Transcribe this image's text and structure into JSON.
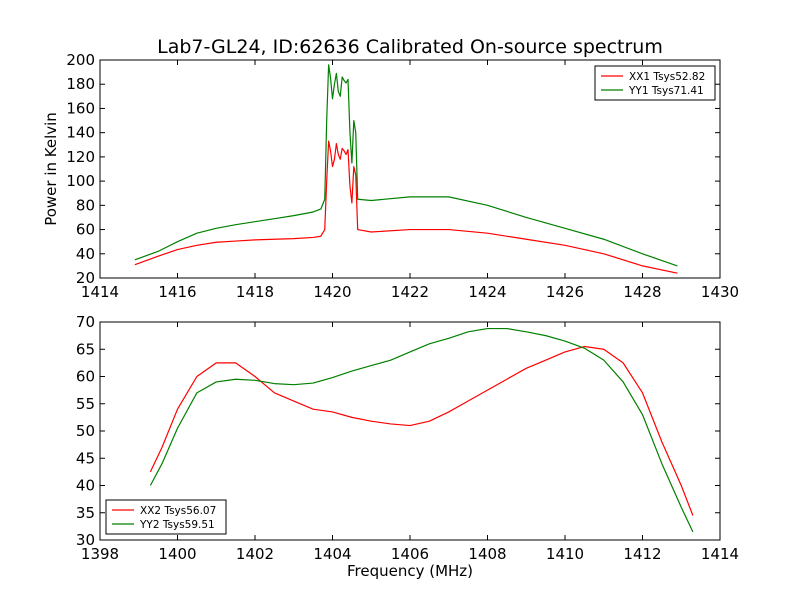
{
  "chart_data": [
    {
      "type": "line",
      "title": "Lab7-GL24, ID:62636 Calibrated On-source spectrum",
      "xlabel": "",
      "ylabel": "Power in Kelvin",
      "xlim": [
        1414,
        1430
      ],
      "ylim": [
        20,
        200
      ],
      "xticks": [
        "1414",
        "1416",
        "1418",
        "1420",
        "1422",
        "1424",
        "1426",
        "1428",
        "1430"
      ],
      "yticks": [
        "20",
        "40",
        "60",
        "80",
        "100",
        "120",
        "140",
        "160",
        "180",
        "200"
      ],
      "legend_position": "top-right",
      "grid": false,
      "series": [
        {
          "name": "XX1 Tsys52.82",
          "color": "#ff0000",
          "points": [
            [
              1414.9,
              31
            ],
            [
              1415.5,
              38
            ],
            [
              1416,
              43.5
            ],
            [
              1416.5,
              47
            ],
            [
              1417,
              49.5
            ],
            [
              1417.5,
              50.5
            ],
            [
              1418,
              51.5
            ],
            [
              1418.5,
              52
            ],
            [
              1419,
              52.5
            ],
            [
              1419.5,
              53.5
            ],
            [
              1419.7,
              54.5
            ],
            [
              1419.8,
              60
            ],
            [
              1419.85,
              100
            ],
            [
              1419.9,
              133
            ],
            [
              1419.95,
              125
            ],
            [
              1420.0,
              112
            ],
            [
              1420.05,
              118
            ],
            [
              1420.1,
              131
            ],
            [
              1420.15,
              122
            ],
            [
              1420.2,
              118
            ],
            [
              1420.25,
              127
            ],
            [
              1420.3,
              125
            ],
            [
              1420.35,
              122
            ],
            [
              1420.4,
              126
            ],
            [
              1420.45,
              96
            ],
            [
              1420.5,
              82
            ],
            [
              1420.55,
              112
            ],
            [
              1420.6,
              105
            ],
            [
              1420.65,
              60
            ],
            [
              1421,
              58
            ],
            [
              1422,
              60
            ],
            [
              1423,
              60
            ],
            [
              1424,
              57
            ],
            [
              1425,
              52
            ],
            [
              1426,
              47
            ],
            [
              1427,
              40
            ],
            [
              1428,
              30
            ],
            [
              1428.9,
              24
            ]
          ]
        },
        {
          "name": "YY1 Tsys71.41",
          "color": "#008000",
          "points": [
            [
              1414.9,
              35
            ],
            [
              1415.5,
              42
            ],
            [
              1416,
              50
            ],
            [
              1416.5,
              57
            ],
            [
              1417,
              61
            ],
            [
              1417.5,
              64
            ],
            [
              1418,
              66.5
            ],
            [
              1418.5,
              69
            ],
            [
              1419,
              71.5
            ],
            [
              1419.5,
              74.5
            ],
            [
              1419.7,
              77
            ],
            [
              1419.8,
              85
            ],
            [
              1419.85,
              150
            ],
            [
              1419.9,
              196
            ],
            [
              1419.95,
              185
            ],
            [
              1420.0,
              168
            ],
            [
              1420.05,
              180
            ],
            [
              1420.1,
              189
            ],
            [
              1420.15,
              174
            ],
            [
              1420.2,
              170
            ],
            [
              1420.25,
              186
            ],
            [
              1420.3,
              183
            ],
            [
              1420.35,
              181
            ],
            [
              1420.4,
              184
            ],
            [
              1420.45,
              140
            ],
            [
              1420.5,
              115
            ],
            [
              1420.55,
              150
            ],
            [
              1420.6,
              140
            ],
            [
              1420.65,
              85
            ],
            [
              1421,
              84
            ],
            [
              1422,
              87
            ],
            [
              1423,
              87
            ],
            [
              1424,
              80
            ],
            [
              1425,
              70
            ],
            [
              1426,
              61
            ],
            [
              1427,
              52
            ],
            [
              1428,
              40
            ],
            [
              1428.9,
              30
            ]
          ]
        }
      ]
    },
    {
      "type": "line",
      "title": "",
      "xlabel": "Frequency (MHz)",
      "ylabel": "",
      "xlim": [
        1398,
        1414
      ],
      "ylim": [
        30,
        70
      ],
      "xticks": [
        "1398",
        "1400",
        "1402",
        "1404",
        "1406",
        "1408",
        "1410",
        "1412",
        "1414"
      ],
      "yticks": [
        "30",
        "35",
        "40",
        "45",
        "50",
        "55",
        "60",
        "65",
        "70"
      ],
      "legend_position": "bottom-left",
      "grid": false,
      "series": [
        {
          "name": "XX2 Tsys56.07",
          "color": "#ff0000",
          "points": [
            [
              1399.3,
              42.5
            ],
            [
              1399.6,
              47
            ],
            [
              1400,
              54
            ],
            [
              1400.5,
              60
            ],
            [
              1401,
              62.5
            ],
            [
              1401.5,
              62.5
            ],
            [
              1402,
              60
            ],
            [
              1402.5,
              57
            ],
            [
              1403,
              55.5
            ],
            [
              1403.5,
              54
            ],
            [
              1404,
              53.5
            ],
            [
              1404.5,
              52.5
            ],
            [
              1405,
              51.8
            ],
            [
              1405.5,
              51.3
            ],
            [
              1406,
              51
            ],
            [
              1406.5,
              51.8
            ],
            [
              1407,
              53.5
            ],
            [
              1407.5,
              55.5
            ],
            [
              1408,
              57.5
            ],
            [
              1408.5,
              59.5
            ],
            [
              1409,
              61.5
            ],
            [
              1409.5,
              63
            ],
            [
              1410,
              64.5
            ],
            [
              1410.5,
              65.5
            ],
            [
              1411,
              65
            ],
            [
              1411.5,
              62.5
            ],
            [
              1412,
              57
            ],
            [
              1412.5,
              48
            ],
            [
              1413,
              40
            ],
            [
              1413.3,
              34.5
            ]
          ]
        },
        {
          "name": "YY2 Tsys59.51",
          "color": "#008000",
          "points": [
            [
              1399.3,
              40
            ],
            [
              1399.6,
              44
            ],
            [
              1400,
              50.5
            ],
            [
              1400.5,
              57
            ],
            [
              1401,
              59
            ],
            [
              1401.5,
              59.5
            ],
            [
              1402,
              59.3
            ],
            [
              1402.5,
              58.7
            ],
            [
              1403,
              58.5
            ],
            [
              1403.5,
              58.8
            ],
            [
              1404,
              59.8
            ],
            [
              1404.5,
              61
            ],
            [
              1405,
              62
            ],
            [
              1405.5,
              63
            ],
            [
              1406,
              64.5
            ],
            [
              1406.5,
              66
            ],
            [
              1407,
              67
            ],
            [
              1407.5,
              68.2
            ],
            [
              1408,
              68.8
            ],
            [
              1408.5,
              68.8
            ],
            [
              1409,
              68.2
            ],
            [
              1409.5,
              67.5
            ],
            [
              1410,
              66.5
            ],
            [
              1410.5,
              65.2
            ],
            [
              1411,
              63
            ],
            [
              1411.5,
              59
            ],
            [
              1412,
              53
            ],
            [
              1412.5,
              44
            ],
            [
              1413,
              36
            ],
            [
              1413.3,
              31.5
            ]
          ]
        }
      ]
    }
  ]
}
